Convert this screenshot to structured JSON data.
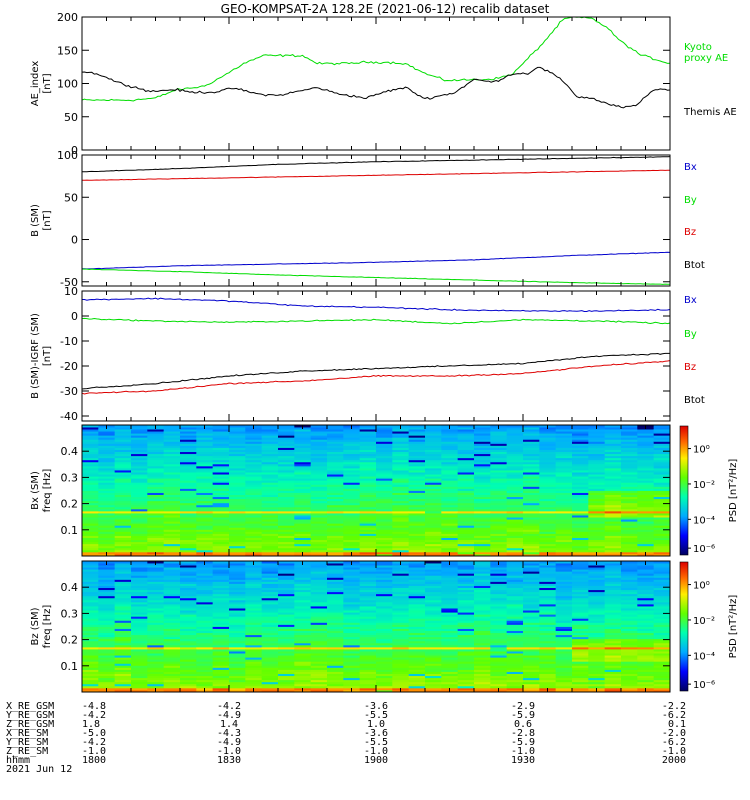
{
  "title": "GEO-KOMPSAT-2A 128.2E (2021-06-12) recalib dataset",
  "colors": {
    "black": "#000000",
    "blue": "#0000cc",
    "green": "#00dd00",
    "red": "#dd0000"
  },
  "chart_data": [
    {
      "type": "line",
      "panel": "ae",
      "ylabel": [
        "AE_index",
        "[nT]"
      ],
      "ylim": [
        0,
        200
      ],
      "yticks": [
        0,
        50,
        100,
        150,
        200
      ],
      "xlim": [
        "18:00",
        "20:00"
      ],
      "series": [
        {
          "name": "Kyoto proxy AE",
          "label_lines": [
            "Kyoto",
            "proxy AE"
          ],
          "color": "green",
          "x": [
            0,
            5,
            10,
            15,
            19,
            25,
            29,
            33,
            37,
            40,
            45,
            48,
            54,
            58,
            62,
            66,
            70,
            74,
            77,
            80,
            82,
            85,
            88,
            90,
            94,
            98,
            100,
            104,
            107,
            110,
            114,
            120
          ],
          "y": [
            75,
            75,
            75,
            78,
            90,
            96,
            112,
            130,
            142,
            142,
            142,
            130,
            130,
            132,
            132,
            130,
            115,
            105,
            105,
            106,
            106,
            108,
            115,
            130,
            160,
            195,
            200,
            198,
            185,
            163,
            143,
            130
          ]
        },
        {
          "name": "Themis AE",
          "label_lines": [
            "Themis AE"
          ],
          "color": "black",
          "x": [
            0,
            3,
            8,
            14,
            19,
            22,
            27,
            31,
            36,
            40,
            44,
            48,
            52,
            58,
            62,
            66,
            70,
            74,
            76,
            80,
            84,
            88,
            91,
            93,
            96,
            99,
            101,
            104,
            107,
            110,
            113,
            115,
            117,
            120
          ],
          "y": [
            118,
            115,
            100,
            88,
            91,
            87,
            87,
            93,
            84,
            82,
            88,
            94,
            85,
            78,
            88,
            94,
            77,
            83,
            86,
            106,
            102,
            115,
            115,
            125,
            115,
            98,
            80,
            78,
            70,
            64,
            66,
            80,
            92,
            90
          ]
        }
      ]
    },
    {
      "type": "line",
      "panel": "bsm",
      "ylabel": [
        "B (SM)",
        "[nT]"
      ],
      "ylim": [
        -55,
        100
      ],
      "yticks": [
        -50,
        0,
        50,
        100
      ],
      "xlim": [
        "18:00",
        "20:00"
      ],
      "series": [
        {
          "name": "Bx",
          "color": "blue",
          "x": [
            0,
            20,
            40,
            60,
            80,
            100,
            120
          ],
          "y": [
            -35,
            -31,
            -29,
            -27,
            -24,
            -19,
            -15
          ]
        },
        {
          "name": "By",
          "color": "green",
          "x": [
            0,
            20,
            40,
            60,
            80,
            100,
            120
          ],
          "y": [
            -35,
            -38,
            -42,
            -45,
            -48,
            -51,
            -53
          ]
        },
        {
          "name": "Bz",
          "color": "red",
          "x": [
            0,
            20,
            40,
            60,
            80,
            100,
            120
          ],
          "y": [
            70,
            72,
            74,
            76,
            78,
            80,
            82
          ]
        },
        {
          "name": "Btot",
          "color": "black",
          "x": [
            0,
            20,
            40,
            60,
            80,
            100,
            120
          ],
          "y": [
            80,
            84,
            89,
            92,
            94,
            96,
            98
          ]
        }
      ]
    },
    {
      "type": "line",
      "panel": "bigrf",
      "ylabel": [
        "B (SM)-IGRF (SM)",
        "[nT]"
      ],
      "ylim": [
        -42,
        10
      ],
      "yticks": [
        -40,
        -30,
        -20,
        -10,
        0,
        10
      ],
      "xlim": [
        "18:00",
        "20:00"
      ],
      "series": [
        {
          "name": "Bx",
          "color": "blue",
          "x": [
            0,
            15,
            30,
            45,
            60,
            75,
            90,
            105,
            120
          ],
          "y": [
            6.5,
            7,
            6,
            4,
            3.5,
            2.5,
            2,
            2,
            2.5
          ]
        },
        {
          "name": "By",
          "color": "green",
          "x": [
            0,
            15,
            30,
            45,
            60,
            75,
            90,
            105,
            120
          ],
          "y": [
            -1,
            -2,
            -2.5,
            -2,
            -1.5,
            -3,
            -1.5,
            -2,
            -3
          ]
        },
        {
          "name": "Bz",
          "color": "red",
          "x": [
            0,
            15,
            30,
            45,
            60,
            75,
            90,
            105,
            120
          ],
          "y": [
            -31,
            -30,
            -27,
            -26,
            -24,
            -24,
            -23,
            -20,
            -18
          ]
        },
        {
          "name": "Btot",
          "color": "black",
          "x": [
            0,
            15,
            30,
            45,
            60,
            75,
            90,
            105,
            120
          ],
          "y": [
            -29,
            -27,
            -24,
            -22,
            -21,
            -20,
            -19,
            -16,
            -15
          ]
        }
      ]
    },
    {
      "type": "heatmap",
      "panel": "spec_bx",
      "ylabel": [
        "Bx (SM)",
        "freq [Hz]"
      ],
      "ylim": [
        0,
        0.5
      ],
      "yticks": [
        0.1,
        0.2,
        0.3,
        0.4
      ],
      "xlim": [
        "18:00",
        "20:00"
      ],
      "colorbar": {
        "label": "PSD [nT²/Hz]",
        "ticks": [
          "10⁰",
          "10⁻²",
          "10⁻⁴",
          "10⁻⁶"
        ]
      }
    },
    {
      "type": "heatmap",
      "panel": "spec_bz",
      "ylabel": [
        "Bz (SM)",
        "freq [Hz]"
      ],
      "ylim": [
        0,
        0.5
      ],
      "yticks": [
        0.1,
        0.2,
        0.3,
        0.4
      ],
      "xlim": [
        "18:00",
        "20:00"
      ],
      "colorbar": {
        "label": "PSD [nT²/Hz]",
        "ticks": [
          "10⁰",
          "10⁻²",
          "10⁻⁴",
          "10⁻⁶"
        ]
      }
    }
  ],
  "orbit_table": {
    "rows": [
      {
        "label": "X_RE_GSM",
        "values": [
          "-4.8",
          "-4.2",
          "-3.6",
          "-2.9",
          "-2.2"
        ]
      },
      {
        "label": "Y_RE_GSM",
        "values": [
          "-4.2",
          "-4.9",
          "-5.5",
          "-5.9",
          "-6.2"
        ]
      },
      {
        "label": "Z_RE_GSM",
        "values": [
          "1.8",
          "1.4",
          "1.0",
          "0.6",
          "0.1"
        ]
      },
      {
        "label": "X_RE_SM",
        "values": [
          "-5.0",
          "-4.3",
          "-3.6",
          "-2.8",
          "-2.0"
        ]
      },
      {
        "label": "Y_RE_SM",
        "values": [
          "-4.2",
          "-4.9",
          "-5.5",
          "-5.9",
          "-6.2"
        ]
      },
      {
        "label": "Z_RE_SM",
        "values": [
          "-1.0",
          "-1.0",
          "-1.0",
          "-1.0",
          "-1.0"
        ]
      },
      {
        "label": "hhmm",
        "values": [
          "1800",
          "1830",
          "1900",
          "1930",
          "2000"
        ]
      }
    ],
    "date": "2021 Jun 12"
  }
}
